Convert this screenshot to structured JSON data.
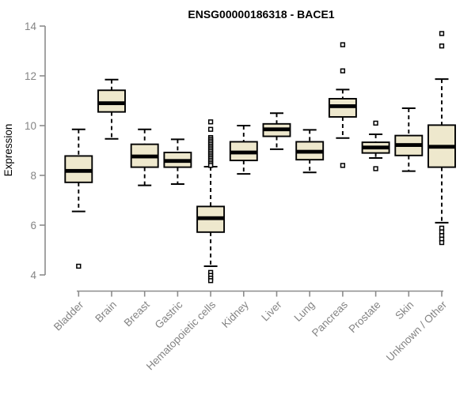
{
  "chart_data": {
    "type": "boxplot",
    "title": "ENSG00000186318 - BACE1",
    "ylabel": "Expression",
    "xlabel": "",
    "ylim": [
      4,
      14
    ],
    "yticks": [
      4,
      6,
      8,
      10,
      12,
      14
    ],
    "grid": false,
    "legend": false,
    "categories": [
      "Bladder",
      "Brain",
      "Breast",
      "Gastric",
      "Hematopoietic cells",
      "Kidney",
      "Liver",
      "Lung",
      "Pancreas",
      "Prostate",
      "Skin",
      "Unknown / Other"
    ],
    "series": [
      {
        "category": "Bladder",
        "whisker_low": 6.55,
        "q1": 7.72,
        "median": 8.18,
        "q3": 8.78,
        "whisker_high": 9.85,
        "outliers": [
          4.35
        ]
      },
      {
        "category": "Brain",
        "whisker_low": 9.47,
        "q1": 10.55,
        "median": 10.9,
        "q3": 11.42,
        "whisker_high": 11.85,
        "outliers": []
      },
      {
        "category": "Breast",
        "whisker_low": 7.6,
        "q1": 8.33,
        "median": 8.76,
        "q3": 9.25,
        "whisker_high": 9.85,
        "outliers": []
      },
      {
        "category": "Gastric",
        "whisker_low": 7.65,
        "q1": 8.33,
        "median": 8.58,
        "q3": 8.92,
        "whisker_high": 9.45,
        "outliers": []
      },
      {
        "category": "Hematopoietic cells",
        "whisker_low": 4.35,
        "q1": 5.72,
        "median": 6.28,
        "q3": 6.75,
        "whisker_high": 8.35,
        "outliers": [
          10.15,
          9.85,
          9.52,
          9.45,
          9.38,
          9.31,
          9.24,
          9.17,
          9.1,
          9.03,
          8.96,
          8.89,
          8.82,
          8.75,
          8.68,
          8.61,
          8.54,
          8.47,
          8.4,
          4.1,
          3.98,
          3.87,
          3.77
        ]
      },
      {
        "category": "Kidney",
        "whisker_low": 8.06,
        "q1": 8.6,
        "median": 8.92,
        "q3": 9.35,
        "whisker_high": 10.0,
        "outliers": []
      },
      {
        "category": "Liver",
        "whisker_low": 9.05,
        "q1": 9.57,
        "median": 9.85,
        "q3": 10.07,
        "whisker_high": 10.5,
        "outliers": []
      },
      {
        "category": "Lung",
        "whisker_low": 8.12,
        "q1": 8.63,
        "median": 8.95,
        "q3": 9.35,
        "whisker_high": 9.83,
        "outliers": []
      },
      {
        "category": "Pancreas",
        "whisker_low": 9.5,
        "q1": 10.35,
        "median": 10.78,
        "q3": 11.08,
        "whisker_high": 11.45,
        "outliers": [
          13.25,
          12.2,
          8.4
        ]
      },
      {
        "category": "Prostate",
        "whisker_low": 8.7,
        "q1": 8.9,
        "median": 9.12,
        "q3": 9.33,
        "whisker_high": 9.65,
        "outliers": [
          10.1,
          8.27
        ]
      },
      {
        "category": "Skin",
        "whisker_low": 8.17,
        "q1": 8.8,
        "median": 9.22,
        "q3": 9.6,
        "whisker_high": 10.7,
        "outliers": []
      },
      {
        "category": "Unknown / Other",
        "whisker_low": 6.1,
        "q1": 8.33,
        "median": 9.15,
        "q3": 10.02,
        "whisker_high": 11.87,
        "outliers": [
          13.7,
          13.2,
          5.88,
          5.73,
          5.58,
          5.44,
          5.3
        ]
      }
    ]
  },
  "colors": {
    "background": "#FFFFFF",
    "box_fill": "#EEE8CD",
    "box_stroke": "#000000",
    "median": "#000000",
    "whisker": "#000000",
    "outlier_stroke": "#000000",
    "outlier_fill": "#FFFFFF",
    "axis": "#8C8C8C",
    "tick_label": "#848484",
    "title": "#000000"
  }
}
